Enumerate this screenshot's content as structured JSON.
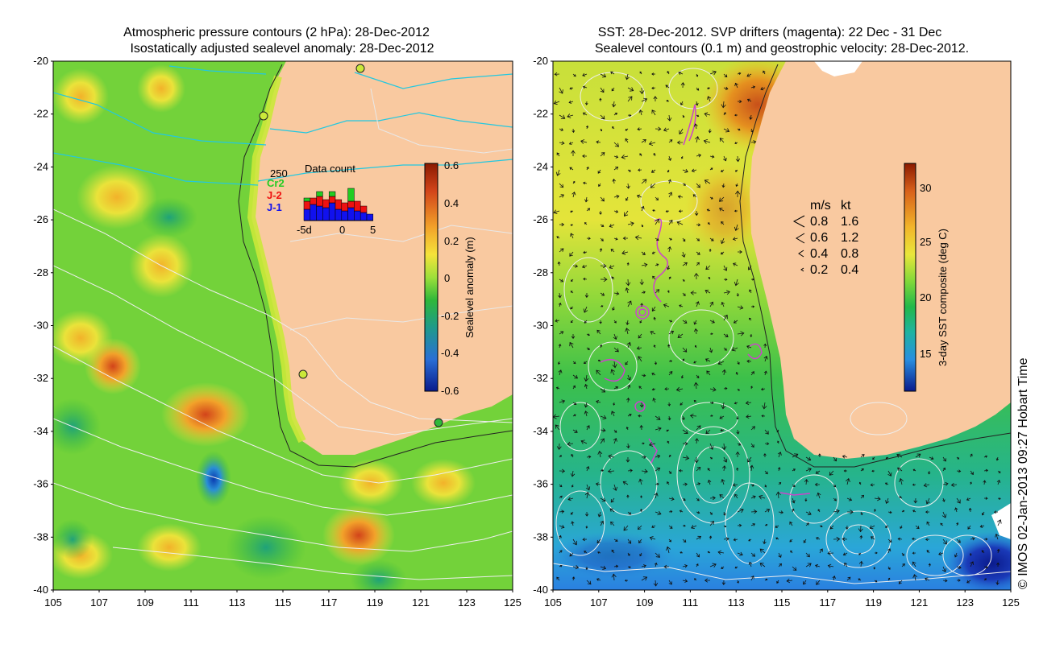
{
  "left_panel": {
    "title_line1": "Atmospheric pressure contours (2 hPa): 28-Dec-2012",
    "title_line2": "Isostatically adjusted sealevel anomaly: 28-Dec-2012",
    "colorbar": {
      "label": "Sealevel anomaly (m)",
      "ticks": [
        "0.6",
        "0.4",
        "0.2",
        "0",
        "-0.2",
        "-0.4",
        "-0.6"
      ],
      "colors": [
        "#8b1a00",
        "#d2441a",
        "#f2a22a",
        "#f5e33a",
        "#9ee03a",
        "#2fb83a",
        "#1f9a8a",
        "#2a6fd6",
        "#0a1a8c"
      ]
    },
    "data_count": {
      "title": "Data count",
      "max_label": "250",
      "legend": [
        "Cr2",
        "J-2",
        "J-1"
      ],
      "legend_colors": [
        "#22cc22",
        "#ee1111",
        "#1111ee"
      ],
      "axis_labels": [
        "-5d",
        "0",
        "5"
      ]
    }
  },
  "right_panel": {
    "title_line1": "SST: 28-Dec-2012. SVP drifters (magenta): 22 Dec - 31 Dec",
    "title_line2": "Sealevel contours (0.1 m) and geostrophic velocity: 28-Dec-2012.",
    "colorbar": {
      "label": "3-day SST composite (deg C)",
      "ticks": [
        "30",
        "25",
        "20",
        "15"
      ],
      "colors": [
        "#8b1a00",
        "#d8601a",
        "#f2b52a",
        "#e9e63a",
        "#7fd83a",
        "#22b84a",
        "#1fb3a0",
        "#2a8fe0",
        "#0a1a8c"
      ]
    },
    "velocity_legend": {
      "header_ms": "m/s",
      "header_kt": "kt",
      "rows": [
        {
          "ms": "0.8",
          "kt": "1.6"
        },
        {
          "ms": "0.6",
          "kt": "1.2"
        },
        {
          "ms": "0.4",
          "kt": "0.8"
        },
        {
          "ms": "0.2",
          "kt": "0.4"
        }
      ]
    }
  },
  "axes": {
    "lat_labels": [
      "-20",
      "-22",
      "-24",
      "-26",
      "-28",
      "-30",
      "-32",
      "-34",
      "-36",
      "-38",
      "-40"
    ],
    "lon_labels": [
      "105",
      "107",
      "109",
      "111",
      "113",
      "115",
      "117",
      "119",
      "121",
      "123",
      "125"
    ]
  },
  "colors": {
    "land": "#f9c9a0",
    "anomaly_bg": "#73d23a",
    "sst_warm": "#f0c030",
    "sst_cool": "#2fb84a",
    "drifter": "#cc44cc",
    "rivers": "#22c8e0"
  },
  "credit": "© IMOS 02-Jan-2013 09:27 Hobart Time"
}
